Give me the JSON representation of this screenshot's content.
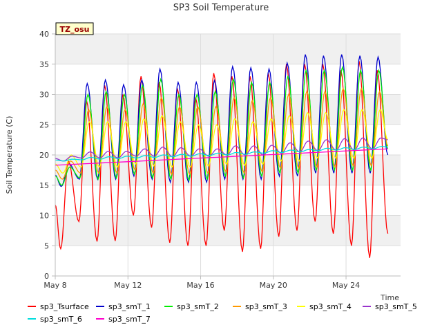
{
  "chart_data": {
    "type": "line",
    "title": "SP3 Soil Temperature",
    "ylabel": "Soil Temperature (C)",
    "xlabel": "Time",
    "ylim": [
      0,
      40
    ],
    "y_ticks": [
      0,
      5,
      10,
      15,
      20,
      25,
      30,
      35,
      40
    ],
    "xlim_days": [
      0,
      19
    ],
    "x_ticks": [
      {
        "day": 0,
        "label": "May 8"
      },
      {
        "day": 4,
        "label": "May 12"
      },
      {
        "day": 8,
        "label": "May 16"
      },
      {
        "day": 12,
        "label": "May 20"
      },
      {
        "day": 16,
        "label": "May 24"
      }
    ],
    "site_badge": "TZ_osu",
    "legend_position": "bottom",
    "days": [
      0.35,
      1.35,
      2.35,
      3.35,
      4.35,
      5.35,
      6.35,
      7.35,
      8.35,
      9.35,
      10.35,
      11.35,
      12.35,
      13.35,
      14.35,
      15.35,
      16.35,
      17.35
    ],
    "series": [
      {
        "name": "sp3_Tsurface",
        "color": "#ff0000",
        "daily_min": [
          4.5,
          9.0,
          5.7,
          5.8,
          10.0,
          8.0,
          5.5,
          5.0,
          5.0,
          7.5,
          4.0,
          4.5,
          6.5,
          7.5,
          9.0,
          7.0,
          5.0,
          3.0
        ],
        "daily_max": [
          19.0,
          29.0,
          31.5,
          30.0,
          33.0,
          32.0,
          31.0,
          29.5,
          33.5,
          33.0,
          33.0,
          33.5,
          35.0,
          35.0,
          35.0,
          34.0,
          35.5,
          34.0
        ],
        "end_value": 7.0
      },
      {
        "name": "sp3_smT_1",
        "color": "#0000cc",
        "daily_min": [
          14.8,
          16.0,
          16.0,
          16.0,
          16.5,
          16.0,
          15.5,
          15.5,
          15.5,
          16.0,
          16.0,
          16.0,
          16.5,
          16.5,
          17.0,
          17.0,
          17.0,
          17.0
        ],
        "daily_max": [
          18.5,
          31.8,
          32.4,
          31.6,
          32.4,
          34.2,
          32.0,
          32.0,
          32.3,
          34.6,
          34.4,
          34.2,
          35.2,
          36.6,
          36.4,
          36.6,
          36.4,
          36.2
        ],
        "end_value": 20.0
      },
      {
        "name": "sp3_smT_2",
        "color": "#00ee00",
        "daily_min": [
          15.0,
          16.2,
          16.0,
          16.2,
          16.8,
          16.2,
          16.0,
          15.8,
          16.0,
          16.5,
          16.2,
          16.5,
          17.0,
          17.0,
          17.5,
          17.5,
          17.5,
          17.5
        ],
        "daily_max": [
          18.0,
          30.0,
          30.5,
          30.0,
          31.5,
          32.5,
          30.0,
          30.0,
          30.5,
          32.5,
          32.0,
          32.0,
          33.0,
          34.0,
          34.0,
          34.5,
          34.0,
          34.0
        ],
        "end_value": 21.0
      },
      {
        "name": "sp3_smT_3",
        "color": "#ff9900",
        "daily_min": [
          16.0,
          17.0,
          17.0,
          17.0,
          17.5,
          17.0,
          16.8,
          16.8,
          17.0,
          17.2,
          17.0,
          17.2,
          17.8,
          17.8,
          18.0,
          18.0,
          18.2,
          18.2
        ],
        "daily_max": [
          19.0,
          27.5,
          28.0,
          27.5,
          28.5,
          29.5,
          28.0,
          28.0,
          28.0,
          29.5,
          29.0,
          29.5,
          30.0,
          30.5,
          30.5,
          31.0,
          31.0,
          30.5
        ],
        "end_value": 21.5
      },
      {
        "name": "sp3_smT_4",
        "color": "#ffff00",
        "daily_min": [
          17.0,
          18.0,
          18.0,
          18.0,
          18.5,
          18.2,
          18.0,
          18.0,
          18.2,
          18.5,
          18.3,
          18.5,
          19.0,
          19.0,
          19.5,
          19.5,
          19.5,
          19.5
        ],
        "daily_max": [
          20.0,
          25.5,
          25.5,
          25.5,
          26.0,
          26.5,
          25.5,
          25.0,
          25.0,
          26.0,
          25.5,
          26.0,
          26.5,
          27.0,
          27.0,
          27.5,
          27.5,
          27.5
        ],
        "end_value": 22.5
      },
      {
        "name": "sp3_smT_5",
        "color": "#9933cc",
        "daily_min": [
          19.0,
          19.5,
          19.5,
          19.5,
          19.8,
          19.8,
          19.7,
          19.8,
          19.8,
          20.0,
          20.0,
          20.0,
          20.3,
          20.5,
          20.7,
          20.8,
          20.8,
          21.0
        ],
        "daily_max": [
          19.8,
          20.5,
          20.6,
          20.6,
          21.0,
          21.3,
          21.2,
          21.0,
          21.0,
          21.5,
          21.5,
          21.6,
          22.0,
          22.3,
          22.5,
          22.7,
          22.8,
          22.8
        ],
        "end_value": 22.5
      },
      {
        "name": "sp3_smT_6",
        "color": "#00dddd",
        "daily_min": [
          19.0,
          19.2,
          19.3,
          19.4,
          19.5,
          19.6,
          19.7,
          19.8,
          19.9,
          20.0,
          20.1,
          20.3,
          20.4,
          20.5,
          20.7,
          20.8,
          20.9,
          21.0
        ],
        "daily_max": [
          19.3,
          19.6,
          19.7,
          19.8,
          19.9,
          20.0,
          20.1,
          20.2,
          20.3,
          20.4,
          20.5,
          20.7,
          20.8,
          20.9,
          21.1,
          21.2,
          21.3,
          21.4
        ],
        "end_value": 21.3
      },
      {
        "name": "sp3_smT_7",
        "color": "#ff00cc",
        "start_value": 18.3,
        "end_value": 21.0
      }
    ]
  }
}
